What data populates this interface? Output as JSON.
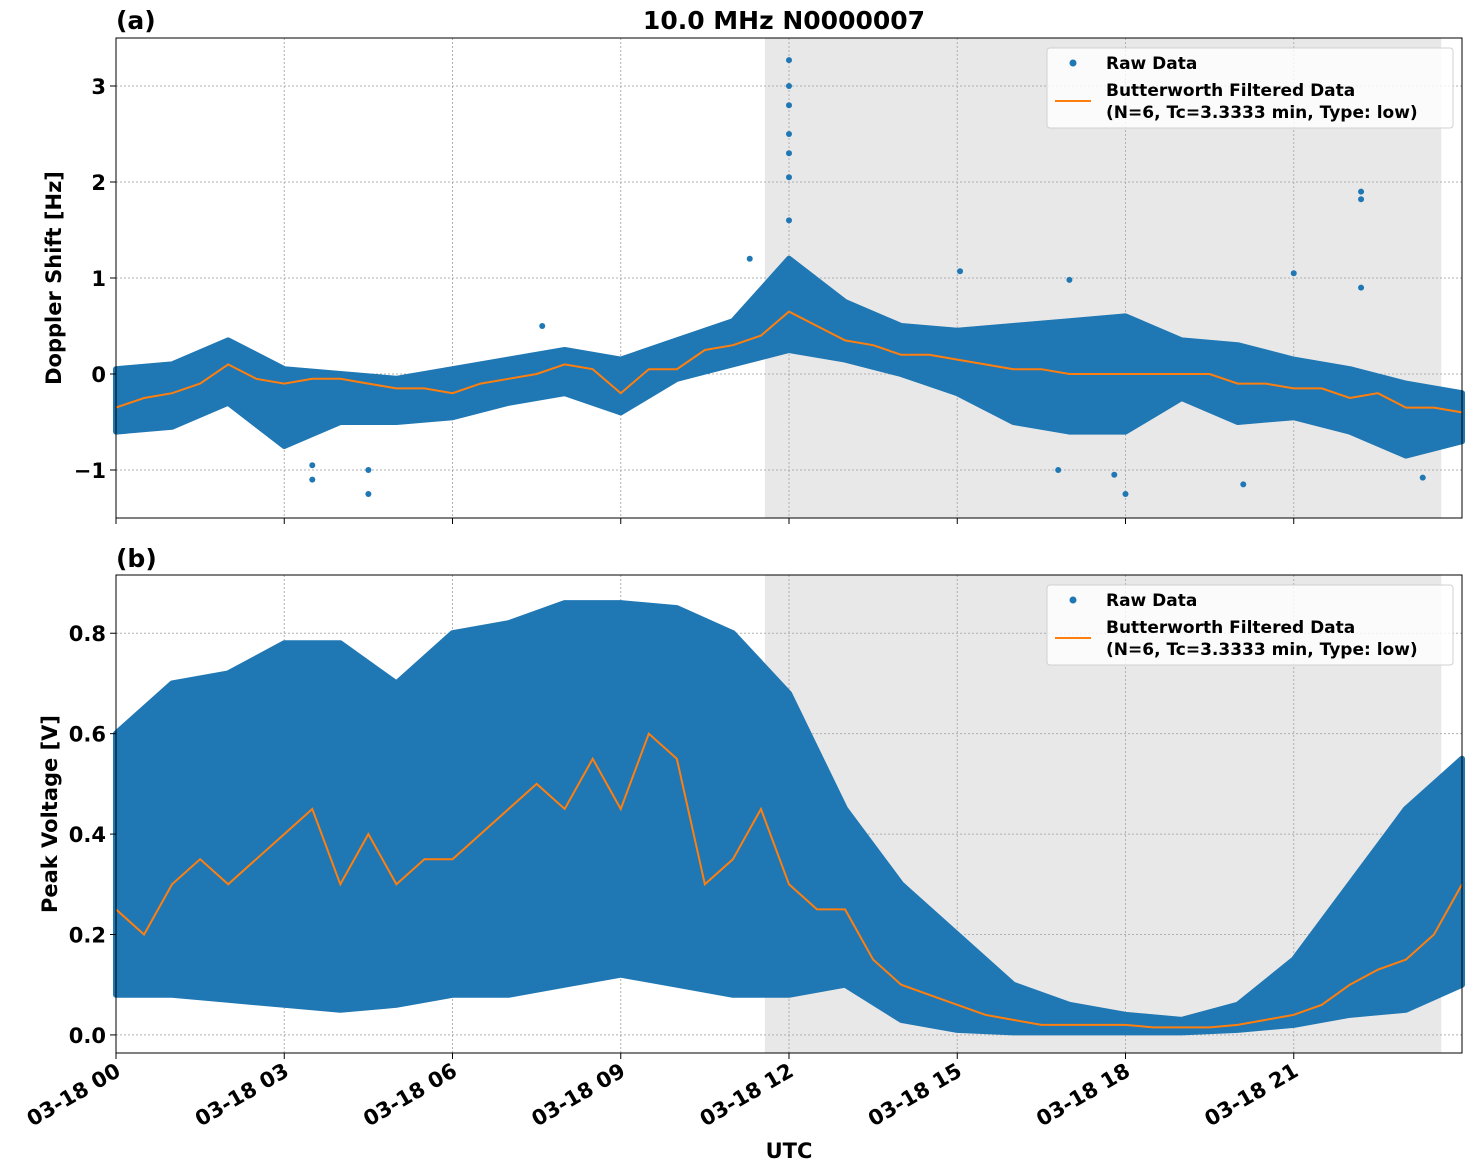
{
  "chart_data": [
    {
      "type": "scatter",
      "panel_label": "(a)",
      "title": "10.0 MHz N0000007",
      "xlabel": "",
      "ylabel": "Doppler Shift [Hz]",
      "x_unit": "hours UTC since 03-18 00",
      "xlim": [
        0,
        24
      ],
      "ylim": [
        -1.5,
        3.5
      ],
      "yticks": [
        -1,
        0,
        1,
        2,
        3
      ],
      "ytick_labels": [
        "−1",
        "0",
        "1",
        "2",
        "3"
      ],
      "xticks": [
        0,
        3,
        6,
        9,
        12,
        15,
        18,
        21
      ],
      "grid": true,
      "legend_position": "top-right",
      "shaded_span": [
        11.57,
        23.63
      ],
      "shade_color": "#e8e8e8",
      "series": [
        {
          "name": "Raw Data",
          "kind": "points",
          "color": "#1f77b4",
          "envelope": {
            "x": [
              0,
              1,
              2,
              3,
              4,
              5,
              6,
              7,
              8,
              9,
              10,
              11,
              12,
              13,
              14,
              15,
              16,
              17,
              18,
              19,
              20,
              21,
              22,
              23,
              24
            ],
            "low": [
              -0.6,
              -0.55,
              -0.3,
              -0.75,
              -0.5,
              -0.5,
              -0.45,
              -0.3,
              -0.2,
              -0.4,
              -0.05,
              0.1,
              0.25,
              0.15,
              0.0,
              -0.2,
              -0.5,
              -0.6,
              -0.6,
              -0.25,
              -0.5,
              -0.45,
              -0.6,
              -0.85,
              -0.7
            ],
            "high": [
              0.05,
              0.1,
              0.35,
              0.05,
              0.0,
              -0.05,
              0.05,
              0.15,
              0.25,
              0.15,
              0.35,
              0.55,
              1.2,
              0.75,
              0.5,
              0.45,
              0.5,
              0.55,
              0.6,
              0.35,
              0.3,
              0.15,
              0.05,
              -0.1,
              -0.2
            ]
          },
          "outliers": [
            [
              12.0,
              3.27
            ],
            [
              12.0,
              3.0
            ],
            [
              12.0,
              2.8
            ],
            [
              12.0,
              2.5
            ],
            [
              12.0,
              2.3
            ],
            [
              12.0,
              2.05
            ],
            [
              12.0,
              1.6
            ],
            [
              3.5,
              -1.1
            ],
            [
              3.5,
              -0.95
            ],
            [
              4.5,
              -1.25
            ],
            [
              4.5,
              -1.0
            ],
            [
              7.6,
              0.5
            ],
            [
              15.05,
              1.07
            ],
            [
              17.0,
              0.98
            ],
            [
              18.0,
              -1.25
            ],
            [
              17.8,
              -1.05
            ],
            [
              20.1,
              -1.15
            ],
            [
              22.2,
              1.9
            ],
            [
              22.2,
              1.82
            ],
            [
              22.2,
              0.9
            ],
            [
              21.0,
              1.05
            ],
            [
              23.3,
              -1.08
            ],
            [
              16.8,
              -1.0
            ],
            [
              11.3,
              1.2
            ]
          ]
        },
        {
          "name": "Butterworth Filtered Data",
          "name_line2": "(N=6, Tc=3.3333 min, Type: low)",
          "kind": "line",
          "color": "#ff7f0e",
          "x": [
            0,
            0.5,
            1,
            1.5,
            2,
            2.5,
            3,
            3.5,
            4,
            4.5,
            5,
            5.5,
            6,
            6.5,
            7,
            7.5,
            8,
            8.5,
            9,
            9.5,
            10,
            10.5,
            11,
            11.5,
            12,
            12.5,
            13,
            13.5,
            14,
            14.5,
            15,
            15.5,
            16,
            16.5,
            17,
            17.5,
            18,
            18.5,
            19,
            19.5,
            20,
            20.5,
            21,
            21.5,
            22,
            22.5,
            23,
            23.5,
            24
          ],
          "y": [
            -0.35,
            -0.25,
            -0.2,
            -0.1,
            0.1,
            -0.05,
            -0.1,
            -0.05,
            -0.05,
            -0.1,
            -0.15,
            -0.15,
            -0.2,
            -0.1,
            -0.05,
            0.0,
            0.1,
            0.05,
            -0.2,
            0.05,
            0.05,
            0.25,
            0.3,
            0.4,
            0.65,
            0.5,
            0.35,
            0.3,
            0.2,
            0.2,
            0.15,
            0.1,
            0.05,
            0.05,
            0.0,
            0.0,
            0.0,
            0.0,
            0.0,
            0.0,
            -0.1,
            -0.1,
            -0.15,
            -0.15,
            -0.25,
            -0.2,
            -0.35,
            -0.35,
            -0.4
          ]
        }
      ]
    },
    {
      "type": "scatter",
      "panel_label": "(b)",
      "xlabel": "UTC",
      "ylabel": "Peak Voltage [V]",
      "xlim": [
        0,
        24
      ],
      "ylim": [
        -0.036,
        0.916
      ],
      "yticks": [
        0.0,
        0.2,
        0.4,
        0.6,
        0.8
      ],
      "ytick_labels": [
        "0.0",
        "0.2",
        "0.4",
        "0.6",
        "0.8"
      ],
      "xticks": [
        0,
        3,
        6,
        9,
        12,
        15,
        18,
        21
      ],
      "xtick_labels": [
        "03-18 00",
        "03-18 03",
        "03-18 06",
        "03-18 09",
        "03-18 12",
        "03-18 15",
        "03-18 18",
        "03-18 21"
      ],
      "grid": true,
      "legend_position": "top-right",
      "shaded_span": [
        11.57,
        23.63
      ],
      "series": [
        {
          "name": "Raw Data",
          "kind": "points",
          "color": "#1f77b4",
          "envelope": {
            "x": [
              0,
              1,
              2,
              3,
              4,
              5,
              6,
              7,
              8,
              9,
              10,
              11,
              12,
              13,
              14,
              15,
              16,
              17,
              18,
              19,
              20,
              21,
              22,
              23,
              24
            ],
            "low": [
              0.08,
              0.08,
              0.07,
              0.06,
              0.05,
              0.06,
              0.08,
              0.08,
              0.1,
              0.12,
              0.1,
              0.08,
              0.08,
              0.1,
              0.03,
              0.01,
              0.005,
              0.005,
              0.005,
              0.005,
              0.01,
              0.02,
              0.04,
              0.05,
              0.1
            ],
            "high": [
              0.6,
              0.7,
              0.72,
              0.78,
              0.78,
              0.7,
              0.8,
              0.82,
              0.86,
              0.86,
              0.85,
              0.8,
              0.68,
              0.45,
              0.3,
              0.2,
              0.1,
              0.06,
              0.04,
              0.03,
              0.06,
              0.15,
              0.3,
              0.45,
              0.55
            ]
          },
          "outliers": []
        },
        {
          "name": "Butterworth Filtered Data",
          "name_line2": "(N=6, Tc=3.3333 min, Type: low)",
          "kind": "line",
          "color": "#ff7f0e",
          "x": [
            0,
            0.5,
            1,
            1.5,
            2,
            2.5,
            3,
            3.5,
            4,
            4.5,
            5,
            5.5,
            6,
            6.5,
            7,
            7.5,
            8,
            8.5,
            9,
            9.5,
            10,
            10.5,
            11,
            11.5,
            12,
            12.5,
            13,
            13.5,
            14,
            14.5,
            15,
            15.5,
            16,
            16.5,
            17,
            17.5,
            18,
            18.5,
            19,
            19.5,
            20,
            20.5,
            21,
            21.5,
            22,
            22.5,
            23,
            23.5,
            24
          ],
          "y": [
            0.25,
            0.2,
            0.3,
            0.35,
            0.3,
            0.35,
            0.4,
            0.45,
            0.3,
            0.4,
            0.3,
            0.35,
            0.35,
            0.4,
            0.45,
            0.5,
            0.45,
            0.55,
            0.45,
            0.6,
            0.55,
            0.3,
            0.35,
            0.45,
            0.3,
            0.25,
            0.25,
            0.15,
            0.1,
            0.08,
            0.06,
            0.04,
            0.03,
            0.02,
            0.02,
            0.02,
            0.02,
            0.015,
            0.015,
            0.015,
            0.02,
            0.03,
            0.04,
            0.06,
            0.1,
            0.13,
            0.15,
            0.2,
            0.3
          ]
        }
      ]
    }
  ]
}
